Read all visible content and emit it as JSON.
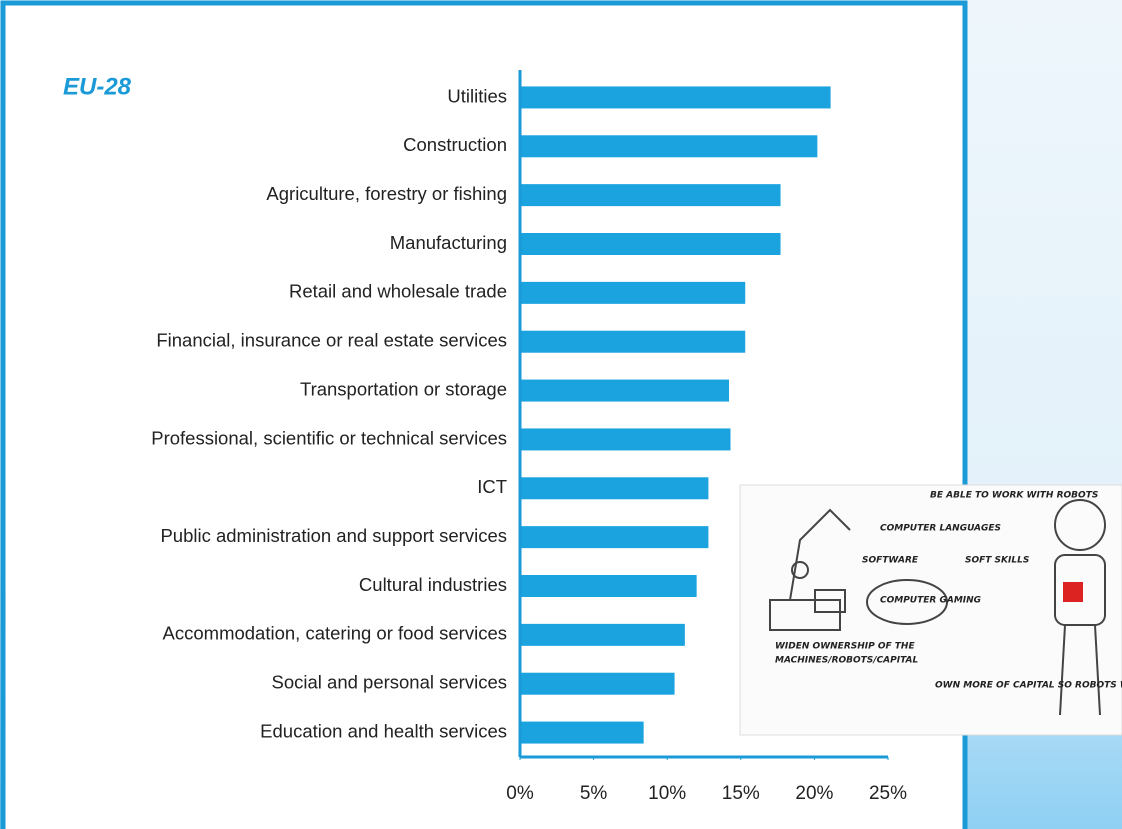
{
  "chart_data": {
    "type": "hbar",
    "title": "EU-28",
    "categories": [
      "Utilities",
      "Construction",
      "Agriculture, forestry or fishing",
      "Manufacturing",
      "Retail and wholesale trade",
      "Financial, insurance or real estate services",
      "Transportation or storage",
      "Professional, scientific or technical services",
      "ICT",
      "Public administration and support services",
      "Cultural industries",
      "Accommodation, catering or food services",
      "Social and personal services",
      "Education and health services"
    ],
    "values": [
      21.1,
      20.2,
      17.7,
      17.7,
      15.3,
      15.3,
      14.2,
      14.3,
      12.8,
      12.8,
      12.0,
      11.2,
      10.5,
      8.4
    ],
    "color": "#1ba3e0",
    "xlim": [
      0,
      25
    ],
    "xticks": [
      {
        "value": 0,
        "label": "0%"
      },
      {
        "value": 5,
        "label": "5%"
      },
      {
        "value": 10,
        "label": "10%"
      },
      {
        "value": 15,
        "label": "15%"
      },
      {
        "value": 20,
        "label": "20%"
      },
      {
        "value": 25,
        "label": "25%"
      }
    ],
    "grid": false
  },
  "illustration": {
    "notes": [
      "BE ABLE TO WORK WITH ROBOTS",
      "COMPUTER LANGUAGES",
      "SOFTWARE",
      "SOFT SKILLS",
      "COMPUTER GAMING",
      "WIDEN OWNERSHIP OF THE",
      "MACHINES/ROBOTS/CAPITAL",
      "OWN MORE OF CAPITAL SO ROBOTS WORK WITH YOU"
    ]
  }
}
